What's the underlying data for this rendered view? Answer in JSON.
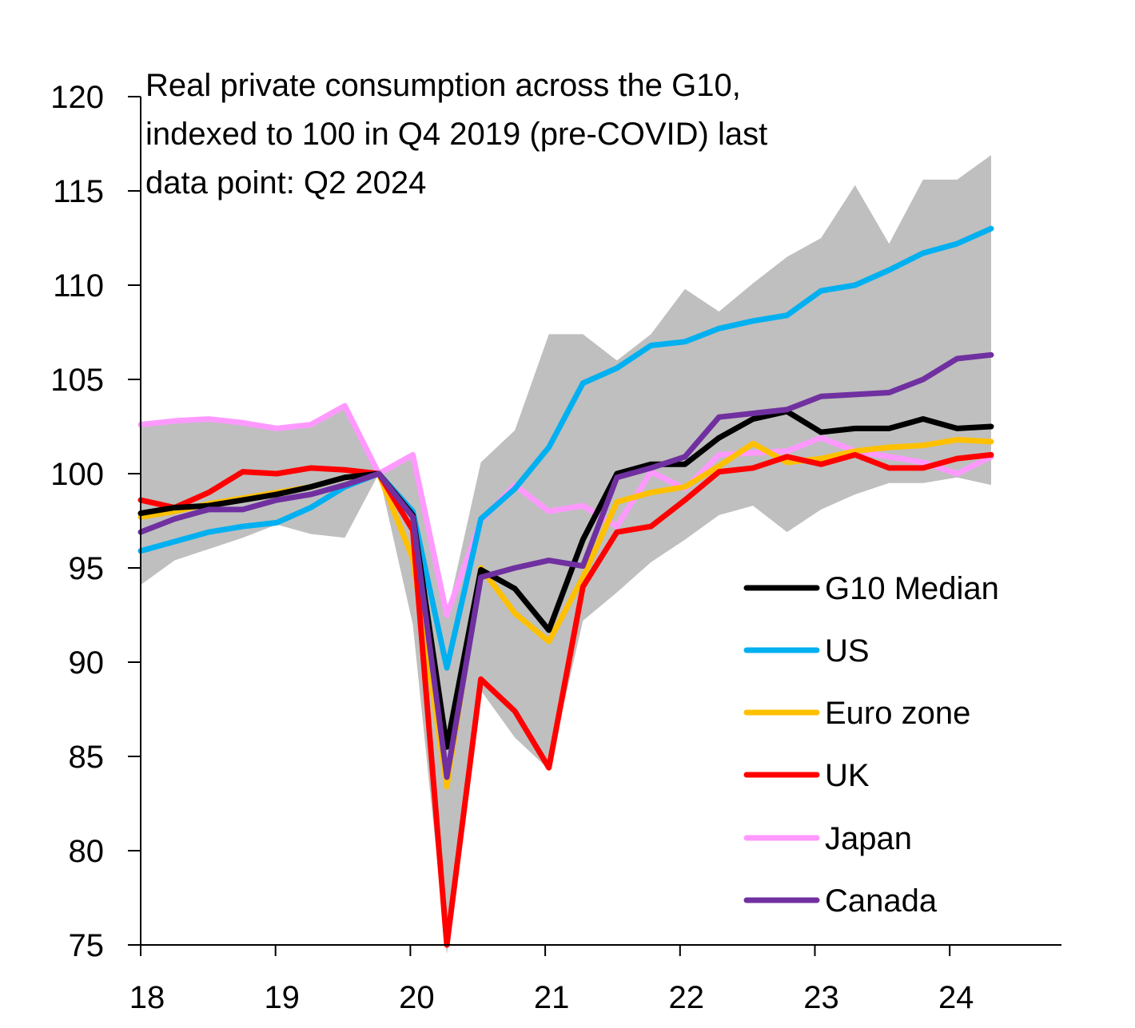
{
  "chart_data": {
    "type": "line",
    "title_lines": [
      "Real private consumption across the G10,",
      "indexed to 100 in Q4 2019 (pre-COVID) last",
      "data point: Q2 2024"
    ],
    "xlabel": "",
    "ylabel": "",
    "x_tick_labels": [
      "18",
      "19",
      "20",
      "21",
      "22",
      "23",
      "24"
    ],
    "y_tick_labels": [
      "75",
      "80",
      "85",
      "90",
      "95",
      "100",
      "105",
      "110",
      "115",
      "120"
    ],
    "ylim": [
      75,
      120
    ],
    "x_range": [
      "Q1 2018",
      "Q2 2024"
    ],
    "x": [
      "Q1 2018",
      "Q2 2018",
      "Q3 2018",
      "Q4 2018",
      "Q1 2019",
      "Q2 2019",
      "Q3 2019",
      "Q4 2019",
      "Q1 2020",
      "Q2 2020",
      "Q3 2020",
      "Q4 2020",
      "Q1 2021",
      "Q2 2021",
      "Q3 2021",
      "Q4 2021",
      "Q1 2022",
      "Q2 2022",
      "Q3 2022",
      "Q4 2022",
      "Q1 2023",
      "Q2 2023",
      "Q3 2023",
      "Q4 2023",
      "Q1 2024",
      "Q2 2024"
    ],
    "grid": false,
    "legend_position": "bottom-right",
    "band": {
      "color": "#bfbfbf",
      "upper": [
        102.6,
        102.8,
        102.9,
        102.7,
        102.4,
        102.6,
        103.6,
        100,
        101,
        92.5,
        100.6,
        102.3,
        107.4,
        107.4,
        106,
        107.4,
        109.8,
        108.6,
        110.1,
        111.5,
        112.5,
        115.3,
        112.2,
        115.6,
        115.6,
        116.9
      ],
      "lower": [
        94.1,
        95.4,
        96,
        96.6,
        97.3,
        96.8,
        96.6,
        100,
        92,
        74.5,
        88.5,
        86,
        84.3,
        92.2,
        93.7,
        95.3,
        96.5,
        97.8,
        98.3,
        96.9,
        98.1,
        98.9,
        99.5,
        99.5,
        99.8,
        99.4
      ]
    },
    "series": [
      {
        "name": "Japan",
        "color": "#ff99ff",
        "values": [
          102.6,
          102.8,
          102.9,
          102.7,
          102.4,
          102.6,
          103.6,
          100,
          101,
          92.5,
          97.5,
          99.4,
          98,
          98.3,
          97.2,
          100.1,
          99.2,
          101,
          101.1,
          101.2,
          101.9,
          101.2,
          100.9,
          100.6,
          100,
          100.9
        ]
      },
      {
        "name": "Euro zone",
        "color": "#ffc000",
        "values": [
          97.7,
          98,
          98.4,
          98.7,
          99,
          99.3,
          99.8,
          100,
          95.5,
          83.4,
          95,
          92.6,
          91.1,
          94.5,
          98.5,
          99,
          99.3,
          100.4,
          101.6,
          100.6,
          100.8,
          101.2,
          101.4,
          101.5,
          101.8,
          101.7
        ]
      },
      {
        "name": "UK",
        "color": "#ff0000",
        "values": [
          98.6,
          98.2,
          99,
          100.1,
          100,
          100.3,
          100.2,
          100,
          97,
          75,
          89.1,
          87.4,
          84.4,
          94,
          96.9,
          97.2,
          98.6,
          100.1,
          100.3,
          100.9,
          100.5,
          101,
          100.3,
          100.3,
          100.8,
          101
        ]
      },
      {
        "name": "US",
        "color": "#00b0f0",
        "values": [
          95.9,
          96.4,
          96.9,
          97.2,
          97.4,
          98.2,
          99.3,
          100,
          98,
          89.7,
          97.6,
          99.2,
          101.4,
          104.8,
          105.6,
          106.8,
          107,
          107.7,
          108.1,
          108.4,
          109.7,
          110,
          110.8,
          111.7,
          112.2,
          113
        ]
      },
      {
        "name": "G10 Median",
        "color": "#000000",
        "values": [
          97.9,
          98.2,
          98.3,
          98.6,
          98.9,
          99.3,
          99.8,
          100,
          97.8,
          85.5,
          94.9,
          93.9,
          91.7,
          96.5,
          100,
          100.5,
          100.5,
          101.9,
          102.9,
          103.3,
          102.2,
          102.4,
          102.4,
          102.9,
          102.4,
          102.5
        ]
      },
      {
        "name": "Canada",
        "color": "#7030a0",
        "values": [
          96.9,
          97.6,
          98.1,
          98.1,
          98.6,
          98.9,
          99.4,
          100,
          97.7,
          83.9,
          94.5,
          95,
          95.4,
          95.1,
          99.8,
          100.3,
          100.9,
          103,
          103.2,
          103.4,
          104.1,
          104.2,
          104.3,
          105,
          106.1,
          106.3
        ]
      }
    ],
    "legend_order": [
      "G10 Median",
      "US",
      "Euro zone",
      "UK",
      "Japan",
      "Canada"
    ]
  }
}
